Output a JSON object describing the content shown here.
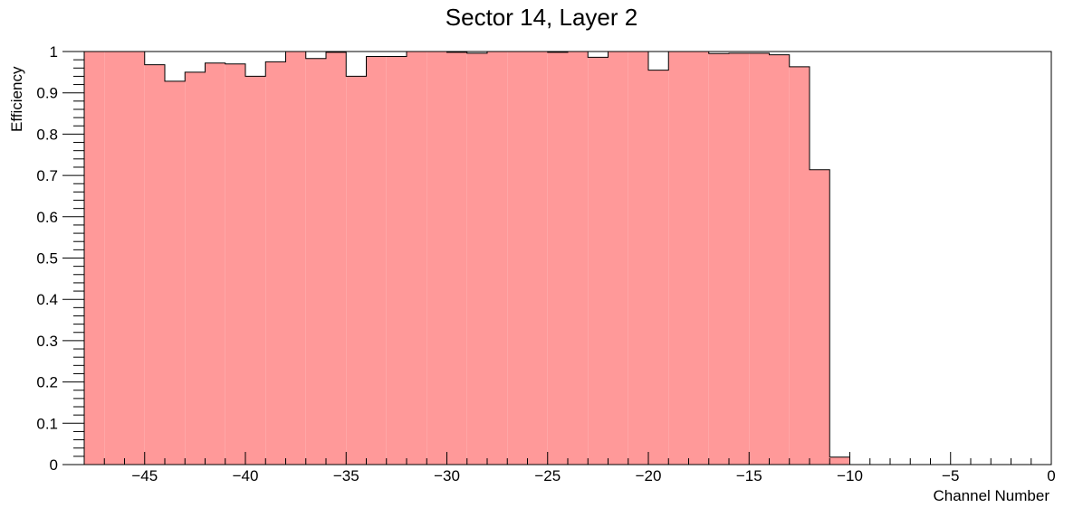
{
  "chart_data": {
    "type": "bar",
    "title": "Sector 14, Layer 2",
    "xlabel": "Channel Number",
    "ylabel": "Efficiency",
    "xlim": [
      -48,
      0
    ],
    "ylim": [
      0,
      1
    ],
    "bin_width": 1,
    "x_ticks": [
      -45,
      -40,
      -35,
      -30,
      -25,
      -20,
      -15,
      -10,
      -5,
      0
    ],
    "x_tick_labels": [
      "−45",
      "−40",
      "−35",
      "−30",
      "−25",
      "−20",
      "−15",
      "−10",
      "−5",
      "0"
    ],
    "y_ticks": [
      0,
      0.1,
      0.2,
      0.3,
      0.4,
      0.5,
      0.6,
      0.7,
      0.8,
      0.9,
      1
    ],
    "y_tick_labels": [
      "0",
      "0.1",
      "0.2",
      "0.3",
      "0.4",
      "0.5",
      "0.6",
      "0.7",
      "0.8",
      "0.9",
      "1"
    ],
    "bin_edges_low": [
      -48,
      -47,
      -46,
      -45,
      -44,
      -43,
      -42,
      -41,
      -40,
      -39,
      -38,
      -37,
      -36,
      -35,
      -34,
      -33,
      -32,
      -31,
      -30,
      -29,
      -28,
      -27,
      -26,
      -25,
      -24,
      -23,
      -22,
      -21,
      -20,
      -19,
      -18,
      -17,
      -16,
      -15,
      -14,
      -13,
      -12,
      -11,
      -10,
      -9,
      -8,
      -7,
      -6,
      -5,
      -4,
      -3,
      -2,
      -1
    ],
    "values": [
      1.0,
      1.0,
      1.0,
      0.968,
      0.928,
      0.95,
      0.972,
      0.97,
      0.94,
      0.975,
      1.0,
      0.983,
      0.998,
      0.94,
      0.988,
      0.988,
      1.0,
      1.0,
      0.998,
      0.996,
      1.0,
      1.0,
      1.0,
      0.998,
      1.0,
      0.986,
      1.0,
      1.0,
      0.955,
      1.0,
      1.0,
      0.995,
      0.996,
      0.996,
      0.992,
      0.963,
      0.714,
      0.018,
      0,
      0,
      0,
      0,
      0,
      0,
      0,
      0,
      0,
      0
    ],
    "fill_color": "#ff9999",
    "line_color": "#000000",
    "grid": false,
    "legend": "none"
  }
}
